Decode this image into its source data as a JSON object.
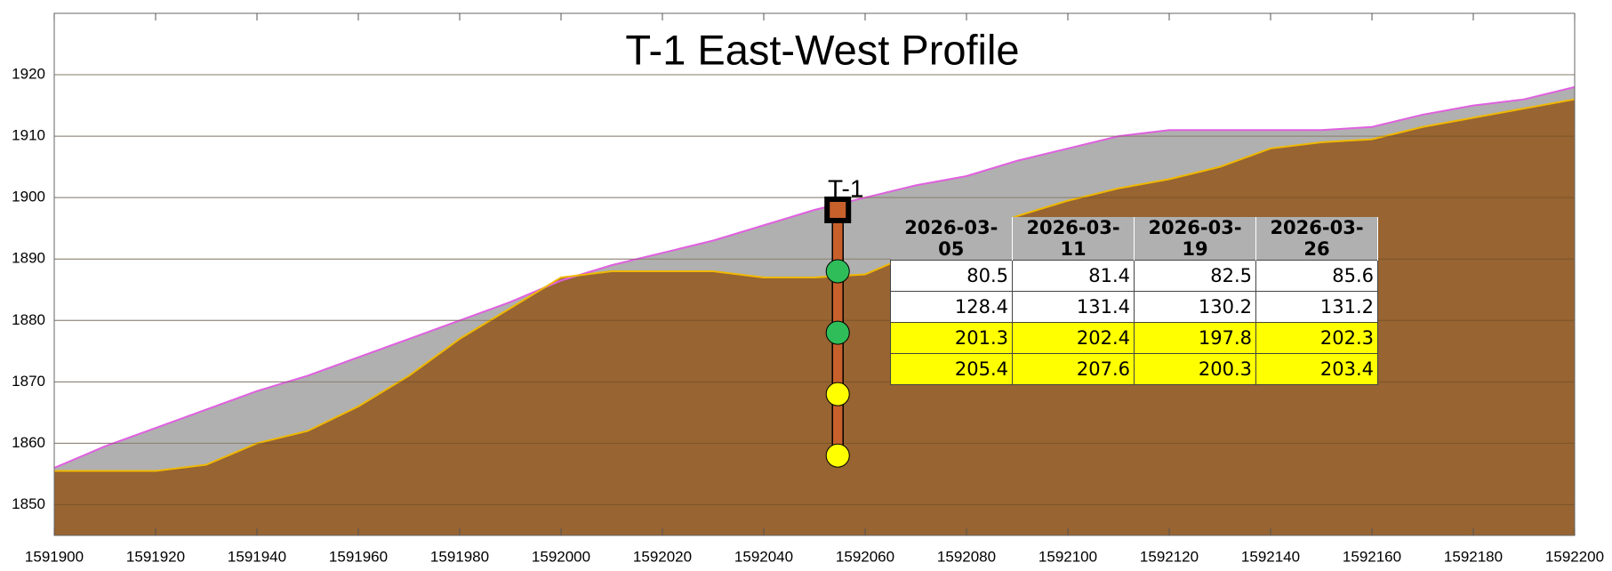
{
  "chart_data": {
    "type": "profile",
    "title": "T-1 East-West Profile",
    "x": [
      1591900,
      1591910,
      1591920,
      1591930,
      1591940,
      1591950,
      1591960,
      1591970,
      1591980,
      1591990,
      1592000,
      1592010,
      1592020,
      1592030,
      1592040,
      1592050,
      1592060,
      1592070,
      1592080,
      1592090,
      1592100,
      1592110,
      1592120,
      1592130,
      1592140,
      1592150,
      1592160,
      1592170,
      1592180,
      1592190,
      1592200
    ],
    "series": [
      {
        "color": "#e060e0",
        "fill": "#b0b0b0",
        "values": [
          1856,
          1859.5,
          1862.5,
          1865.5,
          1868.5,
          1871,
          1874,
          1877,
          1880,
          1883,
          1886.5,
          1889,
          1891,
          1893,
          1895.5,
          1898,
          1900,
          1902,
          1903.5,
          1906,
          1908,
          1910,
          1911,
          1911,
          1911,
          1911,
          1911.5,
          1913.5,
          1915,
          1916,
          1918
        ]
      },
      {
        "color": "#f0b800",
        "fill": "#976432",
        "values": [
          1855.5,
          1855.5,
          1855.5,
          1856.5,
          1860,
          1862,
          1866,
          1871,
          1877,
          1882,
          1887,
          1888,
          1888,
          1888,
          1887,
          1887,
          1887.5,
          1891,
          1894,
          1897,
          1899.5,
          1901.5,
          1903,
          1905,
          1908,
          1909,
          1909.5,
          1911.5,
          1913,
          1914.5,
          1916
        ]
      }
    ],
    "xlim": [
      1591900,
      1592200
    ],
    "xticks": [
      1591900,
      1591920,
      1591940,
      1591960,
      1591980,
      1592000,
      1592020,
      1592040,
      1592060,
      1592080,
      1592100,
      1592120,
      1592140,
      1592160,
      1592180,
      1592200
    ],
    "ylim": [
      1845,
      1930
    ],
    "yticks": [
      1850,
      1860,
      1870,
      1880,
      1890,
      1900,
      1910,
      1920
    ],
    "grid": true,
    "borehole": {
      "label": "T-1",
      "x": 1592054.6,
      "top": 1898,
      "bottom": 1858,
      "color": "#c8602c",
      "sensors": [
        {
          "elevation": 1888,
          "color": "#2ebd59"
        },
        {
          "elevation": 1878,
          "color": "#2ebd59"
        },
        {
          "elevation": 1868,
          "color": "#ffff00"
        },
        {
          "elevation": 1858,
          "color": "#ffff00"
        }
      ]
    }
  },
  "table": {
    "columns": [
      "2026-03-05",
      "2026-03-11",
      "2026-03-19",
      "2026-03-26"
    ],
    "rows": [
      [
        80.5,
        81.4,
        82.5,
        85.6
      ],
      [
        128.4,
        131.4,
        130.2,
        131.2
      ],
      [
        201.3,
        202.4,
        197.8,
        202.3
      ],
      [
        205.4,
        207.6,
        200.3,
        203.4
      ]
    ],
    "row_colors": [
      "#ffffff",
      "#ffffff",
      "#ffff00",
      "#ffff00"
    ]
  }
}
